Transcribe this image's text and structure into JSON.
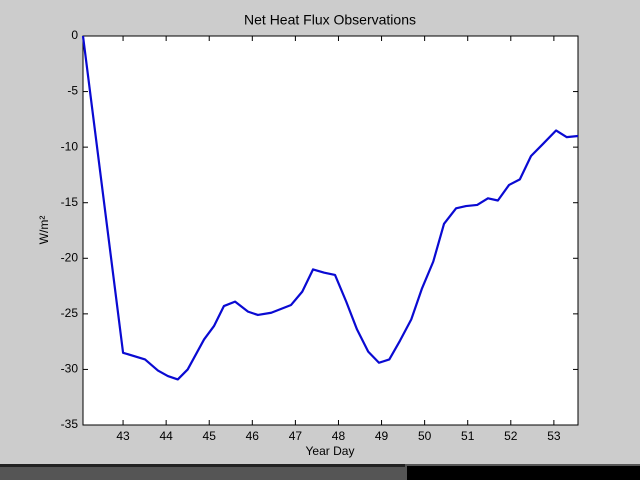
{
  "chart_data": {
    "type": "line",
    "title": "Net Heat Flux Observations",
    "x_label": "Year Day",
    "y_label": "W/m²",
    "x": [
      42.07,
      43.0,
      43.51,
      43.81,
      44.04,
      44.27,
      44.5,
      44.88,
      45.11,
      45.34,
      45.6,
      45.9,
      46.13,
      46.44,
      46.9,
      47.16,
      47.41,
      47.67,
      47.92,
      48.18,
      48.43,
      48.69,
      48.94,
      49.18,
      49.43,
      49.69,
      49.94,
      50.2,
      50.45,
      50.73,
      50.96,
      51.22,
      51.47,
      51.7,
      51.96,
      52.21,
      52.47,
      52.75,
      53.05,
      53.3,
      53.56
    ],
    "values": [
      0,
      -28.5,
      -29.1,
      -30.1,
      -30.6,
      -30.9,
      -30.0,
      -27.3,
      -26.1,
      -24.3,
      -23.9,
      -24.8,
      -25.1,
      -24.9,
      -24.2,
      -23.0,
      -21.0,
      -21.3,
      -21.5,
      -23.9,
      -26.4,
      -28.4,
      -29.4,
      -29.1,
      -27.4,
      -25.5,
      -22.7,
      -20.3,
      -16.9,
      -15.5,
      -15.3,
      -15.2,
      -14.6,
      -14.8,
      -13.4,
      -12.9,
      -10.8,
      -9.7,
      -8.5,
      -9.1,
      -9.0
    ],
    "color": "#0a0ad2",
    "xlim": [
      42.07,
      53.56
    ],
    "xticks": [
      43,
      44,
      45,
      46,
      47,
      48,
      49,
      50,
      51,
      52,
      53
    ],
    "ylim": [
      -35,
      0
    ],
    "yticks": [
      0,
      -5,
      -10,
      -15,
      -20,
      -25,
      -30,
      -35
    ]
  }
}
